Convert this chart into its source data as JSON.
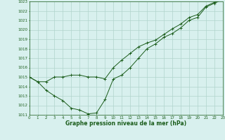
{
  "xlabel": "Graphe pression niveau de la mer (hPa)",
  "ylim": [
    1011,
    1023
  ],
  "xlim": [
    0,
    23
  ],
  "yticks": [
    1011,
    1012,
    1013,
    1014,
    1015,
    1016,
    1017,
    1018,
    1019,
    1020,
    1021,
    1022,
    1023
  ],
  "xticks": [
    0,
    1,
    2,
    3,
    4,
    5,
    6,
    7,
    8,
    9,
    10,
    11,
    12,
    13,
    14,
    15,
    16,
    17,
    18,
    19,
    20,
    21,
    22,
    23
  ],
  "bg_color": "#d8f0ee",
  "grid_color": "#b0d4cc",
  "line_color": "#1a5c1a",
  "line1_x": [
    0,
    1,
    2,
    3,
    4,
    5,
    6,
    7,
    8,
    9,
    10,
    11,
    12,
    13,
    14,
    15,
    16,
    17,
    18,
    19,
    20,
    21,
    22,
    23
  ],
  "line1_y": [
    1015.0,
    1014.5,
    1013.6,
    1013.0,
    1012.5,
    1011.7,
    1011.5,
    1011.1,
    1011.2,
    1012.6,
    1014.8,
    1015.2,
    1016.0,
    1017.0,
    1018.0,
    1018.5,
    1019.2,
    1019.6,
    1020.2,
    1021.0,
    1021.3,
    1022.4,
    1022.8,
    1023.2
  ],
  "line2_x": [
    0,
    1,
    2,
    3,
    4,
    5,
    6,
    7,
    8,
    9,
    10,
    11,
    12,
    13,
    14,
    15,
    16,
    17,
    18,
    19,
    20,
    21,
    22,
    23
  ],
  "line2_y": [
    1015.0,
    1014.5,
    1014.5,
    1015.0,
    1015.0,
    1015.2,
    1015.2,
    1015.0,
    1015.0,
    1014.8,
    1016.0,
    1016.8,
    1017.5,
    1018.2,
    1018.6,
    1018.9,
    1019.5,
    1020.1,
    1020.6,
    1021.3,
    1021.6,
    1022.5,
    1022.9,
    1023.2
  ],
  "tick_fontsize": 4.0,
  "xlabel_fontsize": 5.5,
  "marker_size": 2.5,
  "linewidth": 0.7
}
